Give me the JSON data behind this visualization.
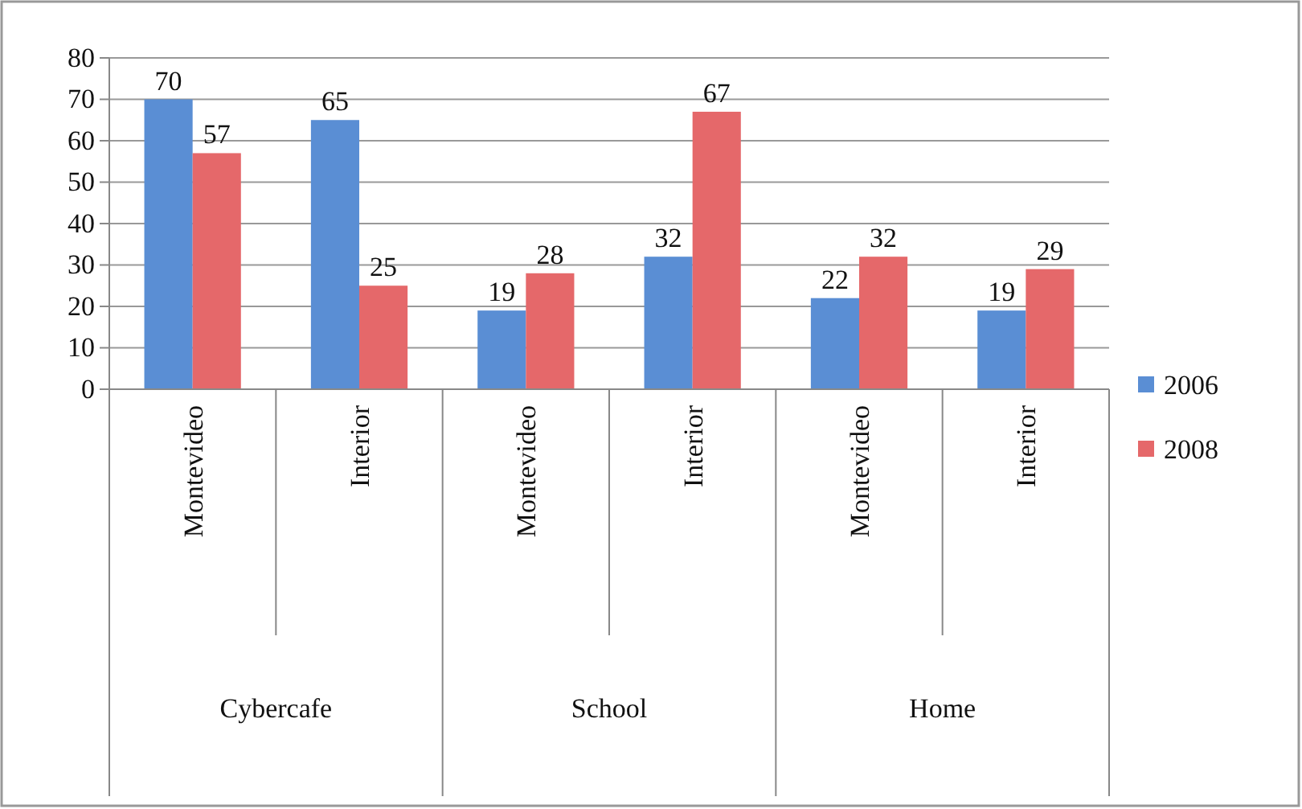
{
  "chart_data": {
    "type": "bar",
    "categories": [
      "Montevideo",
      "Interior",
      "Montevideo",
      "Interior",
      "Montevideo",
      "Interior"
    ],
    "series": [
      {
        "name": "2006",
        "color": "#5a8ed4",
        "values": [
          70,
          65,
          19,
          32,
          22,
          19
        ]
      },
      {
        "name": "2008",
        "color": "#e5686a",
        "values": [
          57,
          25,
          28,
          67,
          32,
          29
        ]
      }
    ],
    "annotations": [
      "Cybercafe",
      "School",
      "Home"
    ],
    "ylim": [
      0,
      80
    ],
    "yticks": [
      0,
      10,
      20,
      30,
      40,
      50,
      60,
      70,
      80
    ],
    "grid": "y",
    "legend": "right",
    "data_labels": true
  }
}
